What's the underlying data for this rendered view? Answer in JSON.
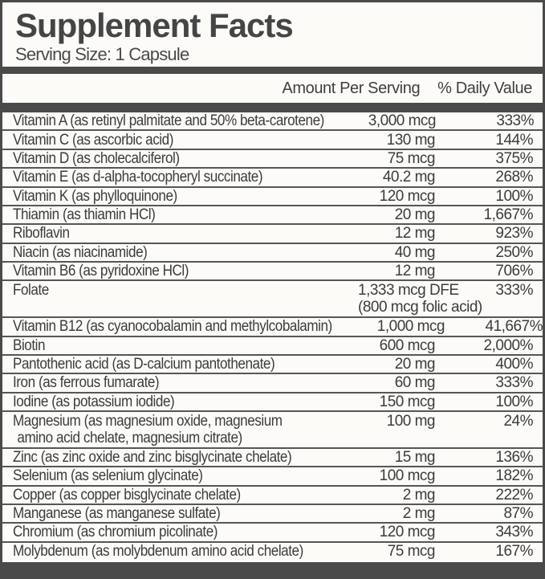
{
  "title": "Supplement Facts",
  "serving_size": "Serving Size: 1 Capsule",
  "header": {
    "amount": "Amount Per Serving",
    "dv": "% Daily Value"
  },
  "colors": {
    "bar": "#4a4a4a",
    "separator": "#565656",
    "text": "#3c3c3c",
    "background": "#fcfbf8"
  },
  "rows": [
    {
      "name": "Vitamin A (as retinyl palmitate and 50% beta-carotene)",
      "amount": "3,000 mcg",
      "dv": "333%"
    },
    {
      "name": "Vitamin C (as ascorbic acid)",
      "amount": "130 mg",
      "dv": "144%"
    },
    {
      "name": "Vitamin D (as cholecalciferol)",
      "amount": "75 mcg",
      "dv": "375%"
    },
    {
      "name": "Vitamin E (as d-alpha-tocopheryl succinate)",
      "amount": "40.2 mg",
      "dv": "268%"
    },
    {
      "name": "Vitamin K (as phylloquinone)",
      "amount": "120 mcg",
      "dv": "100%"
    },
    {
      "name": "Thiamin (as thiamin HCl)",
      "amount": "20 mg",
      "dv": "1,667%"
    },
    {
      "name": "Riboflavin",
      "amount": "12 mg",
      "dv": "923%"
    },
    {
      "name": "Niacin (as niacinamide)",
      "amount": "40 mg",
      "dv": "250%"
    },
    {
      "name": "Vitamin B6 (as pyridoxine HCl)",
      "amount": "12 mg",
      "dv": "706%"
    },
    {
      "name": "Folate",
      "amount": "1,333 mcg DFE",
      "amount2": "(800 mcg folic acid)",
      "dv": "333%"
    },
    {
      "name": "Vitamin B12 (as cyanocobalamin and methylcobalamin)",
      "amount": "1,000 mcg",
      "dv": "41,667%"
    },
    {
      "name": "Biotin",
      "amount": "600 mcg",
      "dv": "2,000%"
    },
    {
      "name": "Pantothenic acid (as D-calcium pantothenate)",
      "amount": "20 mg",
      "dv": "400%"
    },
    {
      "name": "Iron (as ferrous fumarate)",
      "amount": "60 mg",
      "dv": "333%"
    },
    {
      "name": "Iodine (as potassium iodide)",
      "amount": "150 mcg",
      "dv": "100%"
    },
    {
      "name": "Magnesium (as magnesium oxide, magnesium",
      "name2": "amino acid chelate, magnesium citrate)",
      "amount": "100 mg",
      "dv": "24%"
    },
    {
      "name": "Zinc (as zinc oxide and zinc bisglycinate chelate)",
      "amount": "15 mg",
      "dv": "136%"
    },
    {
      "name": "Selenium (as selenium glycinate)",
      "amount": "100 mcg",
      "dv": "182%"
    },
    {
      "name": "Copper (as copper bisglycinate chelate)",
      "amount": "2 mg",
      "dv": "222%"
    },
    {
      "name": "Manganese (as manganese sulfate)",
      "amount": "2 mg",
      "dv": "87%"
    },
    {
      "name": "Chromium (as chromium picolinate)",
      "amount": "120 mcg",
      "dv": "343%"
    },
    {
      "name": "Molybdenum (as molybdenum amino acid chelate)",
      "amount": "75 mcg",
      "dv": "167%"
    }
  ]
}
